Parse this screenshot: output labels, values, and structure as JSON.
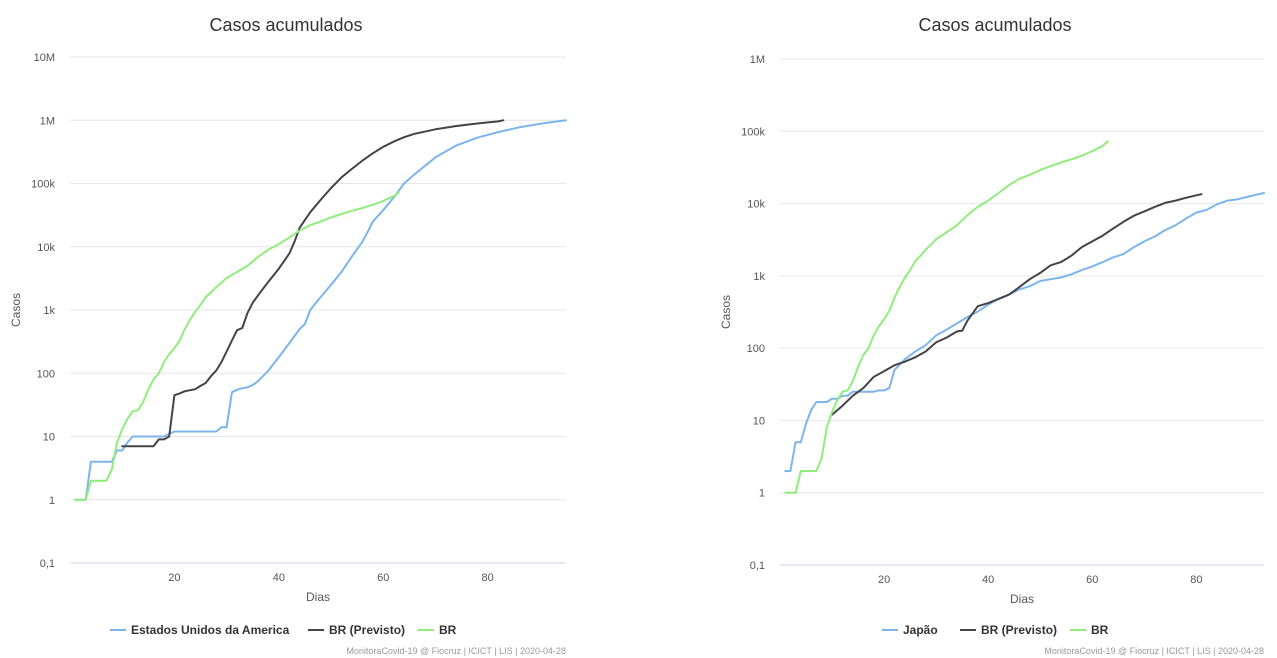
{
  "chart_data": [
    {
      "type": "line",
      "title": "Casos acumulados",
      "xlabel": "Dias",
      "ylabel": "Casos",
      "y_scale": "log",
      "xlim": [
        0,
        95
      ],
      "ylim": [
        0.1,
        10000000
      ],
      "x_ticks": [
        20,
        40,
        60,
        80
      ],
      "y_ticks": [
        "0,1",
        "1",
        "10",
        "100",
        "1k",
        "10k",
        "100k",
        "1M",
        "10M"
      ],
      "grid": true,
      "legend_position": "bottom",
      "credits": "MonitoraCovid-19 @ Fiocruz | ICICT | LIS | 2020-04-28",
      "series": [
        {
          "name": "Estados Unidos da America",
          "color": "#7cb5ec",
          "x": [
            1,
            3,
            4,
            6,
            7,
            8,
            9,
            10,
            11,
            12,
            14,
            16,
            18,
            19,
            20,
            24,
            26,
            27,
            28,
            29,
            30,
            31,
            32,
            33,
            34,
            35,
            36,
            38,
            40,
            42,
            44,
            45,
            46,
            48,
            50,
            52,
            54,
            56,
            57,
            58,
            60,
            62,
            64,
            66,
            70,
            74,
            78,
            82,
            86,
            90,
            95
          ],
          "y": [
            1,
            1,
            4,
            4,
            4,
            4,
            6,
            6,
            8,
            10,
            10,
            10,
            10,
            11,
            12,
            12,
            12,
            12,
            12,
            14,
            14,
            50,
            55,
            58,
            60,
            65,
            75,
            110,
            180,
            300,
            500,
            600,
            1000,
            1600,
            2500,
            4000,
            7000,
            12000,
            17000,
            25000,
            38000,
            60000,
            100000,
            140000,
            260000,
            400000,
            530000,
            650000,
            770000,
            880000,
            1000000
          ]
        },
        {
          "name": "BR (Previsto)",
          "color": "#434348",
          "x": [
            10,
            12,
            14,
            15,
            16,
            17,
            18,
            19,
            20,
            21,
            22,
            24,
            25,
            26,
            27,
            28,
            29,
            30,
            31,
            32,
            33,
            34,
            35,
            36,
            38,
            40,
            42,
            43,
            44,
            46,
            48,
            50,
            52,
            54,
            56,
            58,
            60,
            62,
            64,
            66,
            70,
            74,
            78,
            82,
            83
          ],
          "y": [
            7,
            7,
            7,
            7,
            7,
            9,
            9,
            10,
            45,
            48,
            52,
            56,
            63,
            70,
            90,
            110,
            150,
            220,
            330,
            480,
            520,
            900,
            1300,
            1700,
            2800,
            4500,
            7800,
            12000,
            20000,
            35000,
            55000,
            85000,
            125000,
            170000,
            230000,
            300000,
            380000,
            460000,
            540000,
            610000,
            720000,
            810000,
            890000,
            960000,
            1000000
          ]
        },
        {
          "name": "BR",
          "color": "#90ed7d",
          "x": [
            1,
            2,
            3,
            4,
            5,
            6,
            7,
            8,
            9,
            10,
            11,
            12,
            13,
            14,
            15,
            16,
            17,
            18,
            19,
            20,
            21,
            22,
            23,
            24,
            25,
            26,
            27,
            28,
            29,
            30,
            32,
            34,
            36,
            38,
            40,
            42,
            44,
            46,
            48,
            50,
            52,
            54,
            56,
            58,
            60,
            62,
            63
          ],
          "y": [
            1,
            1,
            1,
            2,
            2,
            2,
            2,
            3,
            8,
            13,
            19,
            25,
            26,
            35,
            55,
            80,
            100,
            150,
            200,
            250,
            330,
            500,
            700,
            950,
            1200,
            1600,
            1900,
            2300,
            2700,
            3200,
            4000,
            5000,
            6900,
            9000,
            11000,
            14000,
            18000,
            22000,
            25000,
            29000,
            33000,
            37000,
            41000,
            46000,
            53000,
            63000,
            73000
          ]
        }
      ]
    },
    {
      "type": "line",
      "title": "Casos acumulados",
      "xlabel": "Dias",
      "ylabel": "Casos",
      "y_scale": "log",
      "xlim": [
        0,
        93
      ],
      "ylim": [
        0.1,
        1000000
      ],
      "x_ticks": [
        20,
        40,
        60,
        80
      ],
      "y_ticks": [
        "0,1",
        "1",
        "10",
        "100",
        "1k",
        "10k",
        "100k",
        "1M"
      ],
      "grid": true,
      "legend_position": "bottom",
      "credits": "MonitoraCovid-19 @ Fiocruz | ICICT | LIS | 2020-04-28",
      "series": [
        {
          "name": "Japão",
          "color": "#7cb5ec",
          "x": [
            1,
            2,
            3,
            4,
            5,
            6,
            7,
            8,
            9,
            10,
            11,
            12,
            13,
            14,
            15,
            16,
            17,
            18,
            19,
            20,
            21,
            22,
            24,
            26,
            28,
            30,
            32,
            34,
            36,
            38,
            40,
            42,
            44,
            46,
            48,
            50,
            52,
            54,
            56,
            58,
            60,
            62,
            64,
            66,
            68,
            70,
            72,
            74,
            76,
            78,
            80,
            82,
            84,
            86,
            88,
            90,
            92,
            93
          ],
          "y": [
            2,
            2,
            5,
            5,
            9,
            14,
            18,
            18,
            18,
            20,
            20,
            22,
            22,
            25,
            25,
            25,
            25,
            25,
            26,
            26,
            28,
            50,
            70,
            90,
            110,
            150,
            180,
            220,
            270,
            320,
            400,
            480,
            550,
            650,
            720,
            850,
            900,
            950,
            1050,
            1200,
            1350,
            1550,
            1800,
            2000,
            2500,
            3000,
            3500,
            4300,
            5000,
            6200,
            7500,
            8200,
            9800,
            11000,
            11500,
            12500,
            13500,
            14000
          ]
        },
        {
          "name": "BR (Previsto)",
          "color": "#434348",
          "x": [
            10,
            12,
            14,
            16,
            18,
            20,
            22,
            24,
            26,
            28,
            30,
            32,
            34,
            35,
            36,
            38,
            40,
            42,
            44,
            46,
            48,
            50,
            52,
            54,
            56,
            58,
            60,
            62,
            64,
            66,
            68,
            70,
            72,
            74,
            76,
            78,
            80,
            81
          ],
          "y": [
            12,
            16,
            22,
            28,
            40,
            48,
            58,
            65,
            75,
            90,
            120,
            140,
            170,
            175,
            240,
            380,
            420,
            480,
            550,
            700,
            900,
            1100,
            1400,
            1550,
            1900,
            2500,
            3000,
            3600,
            4500,
            5600,
            6800,
            7800,
            9000,
            10200,
            11000,
            12000,
            13000,
            13500
          ]
        },
        {
          "name": "BR",
          "color": "#90ed7d",
          "x": [
            1,
            2,
            3,
            4,
            5,
            6,
            7,
            8,
            9,
            10,
            11,
            12,
            13,
            14,
            15,
            16,
            17,
            18,
            19,
            20,
            21,
            22,
            23,
            24,
            25,
            26,
            27,
            28,
            29,
            30,
            32,
            34,
            36,
            38,
            40,
            42,
            44,
            46,
            48,
            50,
            52,
            54,
            56,
            58,
            60,
            62,
            63
          ],
          "y": [
            1,
            1,
            1,
            2,
            2,
            2,
            2,
            3,
            8,
            13,
            19,
            25,
            26,
            35,
            55,
            80,
            100,
            150,
            200,
            250,
            330,
            500,
            700,
            950,
            1200,
            1600,
            1900,
            2300,
            2700,
            3200,
            4000,
            5000,
            6900,
            9000,
            11000,
            14000,
            18000,
            22000,
            25000,
            29000,
            33000,
            37000,
            41000,
            46000,
            53000,
            63000,
            73000
          ]
        }
      ]
    }
  ]
}
